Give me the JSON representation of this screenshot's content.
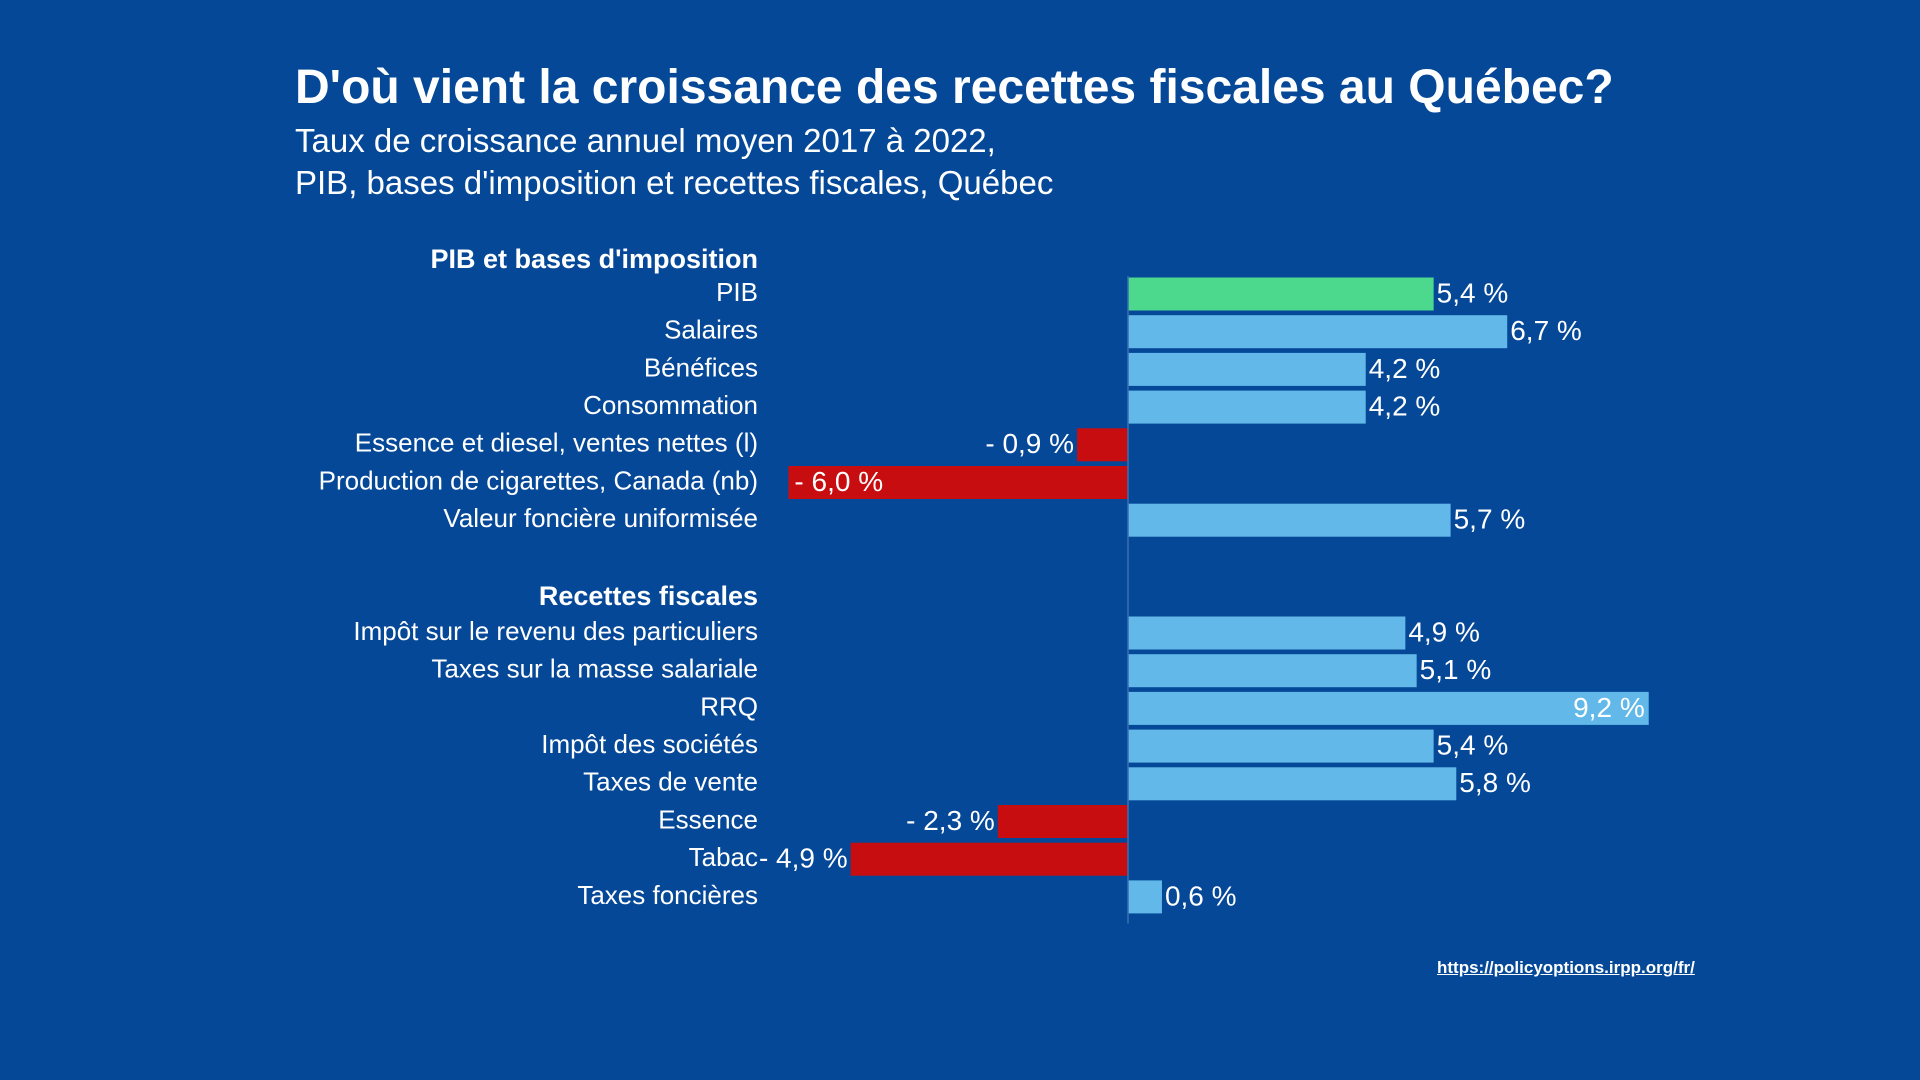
{
  "title": "D'où vient la croissance des recettes fiscales au Québec?",
  "subtitle_line1": "Taux de croissance annuel moyen 2017 à 2022,",
  "subtitle_line2": "PIB, bases d'imposition et recettes fiscales, Québec",
  "source": "https://policyoptions.irpp.org/fr/",
  "colors": {
    "background": "#054898",
    "highlight": "#4cd98e",
    "positive": "#62b8e8",
    "negative": "#c80d11",
    "text": "#ffffff"
  },
  "chart_data": {
    "type": "bar",
    "orientation": "horizontal",
    "unit": "%",
    "groups": [
      {
        "name": "PIB et bases d'imposition",
        "categories": [
          "PIB",
          "Salaires",
          "Bénéfices",
          "Consommation",
          "Essence et diesel, ventes nettes (l)",
          "Production de cigarettes, Canada (nb)",
          "Valeur foncière uniformisée"
        ],
        "values": [
          5.4,
          6.7,
          4.2,
          4.2,
          -0.9,
          -6.0,
          5.7
        ],
        "labels": [
          "5,4 %",
          "6,7 %",
          "4,2 %",
          "4,2 %",
          "- 0,9 %",
          "- 6,0 %",
          "5,7 %"
        ],
        "highlight_index": 0
      },
      {
        "name": "Recettes fiscales",
        "categories": [
          "Impôt sur le revenu des particuliers",
          "Taxes sur la masse salariale",
          "RRQ",
          "Impôt des sociétés",
          "Taxes de vente",
          "Essence",
          "Tabac",
          "Taxes foncières"
        ],
        "values": [
          4.9,
          5.1,
          9.2,
          5.4,
          5.8,
          -2.3,
          -4.9,
          0.6
        ],
        "labels": [
          "4,9 %",
          "5,1 %",
          "9,2 %",
          "5,4 %",
          "5,8 %",
          "- 2,3 %",
          "- 4,9 %",
          "0,6 %"
        ],
        "highlight_index": -1
      }
    ],
    "xlim": [
      -6.0,
      9.2
    ],
    "grid": false,
    "legend": "none"
  }
}
